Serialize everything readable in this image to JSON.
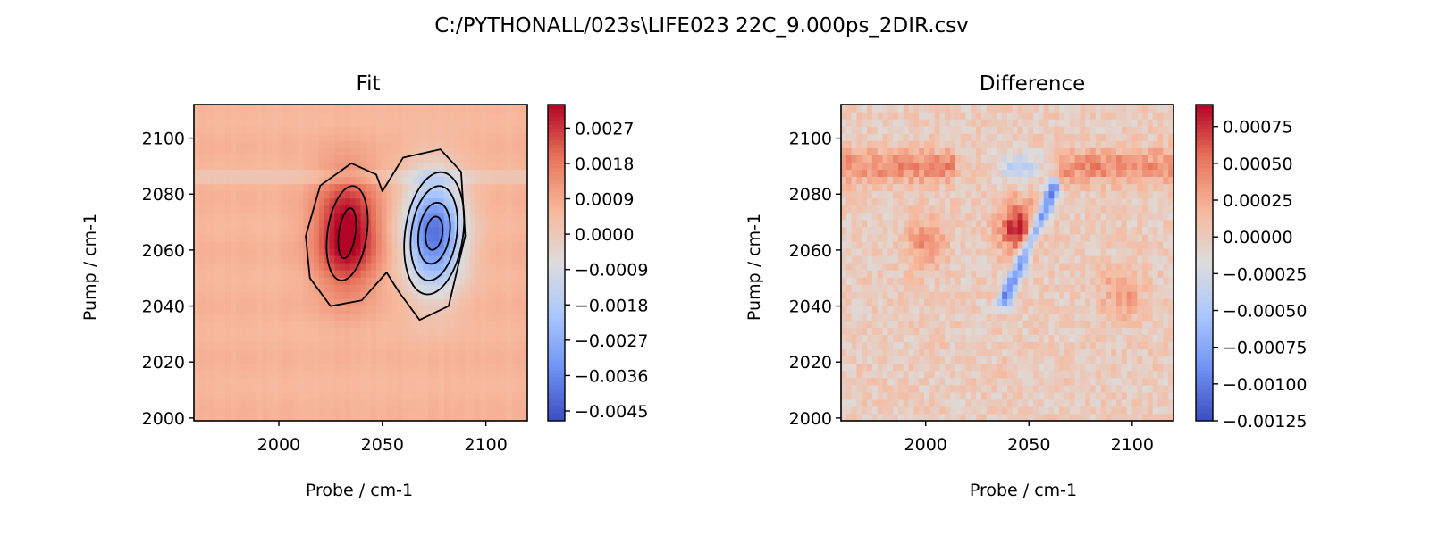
{
  "suptitle": "C:/PYTHONALL/023s\\LIFE023 22C_9.000ps_2DIR.csv",
  "colormap": {
    "name": "coolwarm",
    "stops": [
      "#3b4cc0",
      "#6f92f3",
      "#aac7fd",
      "#dddcdc",
      "#f7b89c",
      "#e7745b",
      "#b40426"
    ]
  },
  "chart_data": [
    {
      "type": "heatmap",
      "title": "Fit",
      "xlabel": "Probe / cm-1",
      "ylabel": "Pump / cm-1",
      "xlim": [
        1959,
        2120
      ],
      "ylim": [
        1999,
        2112
      ],
      "xticks": [
        2000,
        2050,
        2100
      ],
      "yticks": [
        2000,
        2020,
        2040,
        2060,
        2080,
        2100
      ],
      "colorbar": {
        "vmin": -0.00475,
        "vmax": 0.0033,
        "ticks": [
          0.0027,
          0.0018,
          0.0009,
          0.0,
          -0.0009,
          -0.0018,
          -0.0027,
          -0.0036,
          -0.0045
        ],
        "tick_labels": [
          "0.0027",
          "0.0018",
          "0.0009",
          "0.0000",
          "−0.0009",
          "−0.0018",
          "−0.0027",
          "−0.0036",
          "−0.0045"
        ]
      },
      "background_value": 0.0007,
      "features": [
        {
          "kind": "positive-peak",
          "x": 2033,
          "y": 2066,
          "amplitude": 0.003
        },
        {
          "kind": "negative-peak",
          "x": 2075,
          "y": 2066,
          "amplitude": -0.0047
        }
      ],
      "contours": true
    },
    {
      "type": "heatmap",
      "title": "Difference",
      "xlabel": "Probe / cm-1",
      "ylabel": "Pump / cm-1",
      "xlim": [
        1959,
        2120
      ],
      "ylim": [
        1999,
        2112
      ],
      "xticks": [
        2000,
        2050,
        2100
      ],
      "yticks": [
        2000,
        2020,
        2040,
        2060,
        2080,
        2100
      ],
      "colorbar": {
        "vmin": -0.00125,
        "vmax": 0.0009,
        "ticks": [
          0.00075,
          0.0005,
          0.00025,
          0.0,
          -0.00025,
          -0.0005,
          -0.00075,
          -0.001,
          -0.00125
        ],
        "tick_labels": [
          "0.00075",
          "0.00050",
          "0.00025",
          "0.00000",
          "−0.00025",
          "−0.00050",
          "−0.00075",
          "−0.00100",
          "−0.00125"
        ]
      },
      "features": [
        {
          "kind": "positive-band",
          "y": 2090,
          "amplitude": 0.00042
        },
        {
          "kind": "positive-blob",
          "x": 2045,
          "y": 2068,
          "amplitude": 0.00085
        },
        {
          "kind": "positive-blob",
          "x": 2000,
          "y": 2062,
          "amplitude": 0.0004
        },
        {
          "kind": "positive-blob",
          "x": 2095,
          "y": 2045,
          "amplitude": 0.00035
        },
        {
          "kind": "negative-streak",
          "from": [
            2062,
            2082
          ],
          "to": [
            2038,
            2042
          ],
          "amplitude": -0.00095
        },
        {
          "kind": "negative-blob",
          "x": 2045,
          "y": 2090,
          "amplitude": -0.00055
        }
      ]
    }
  ]
}
